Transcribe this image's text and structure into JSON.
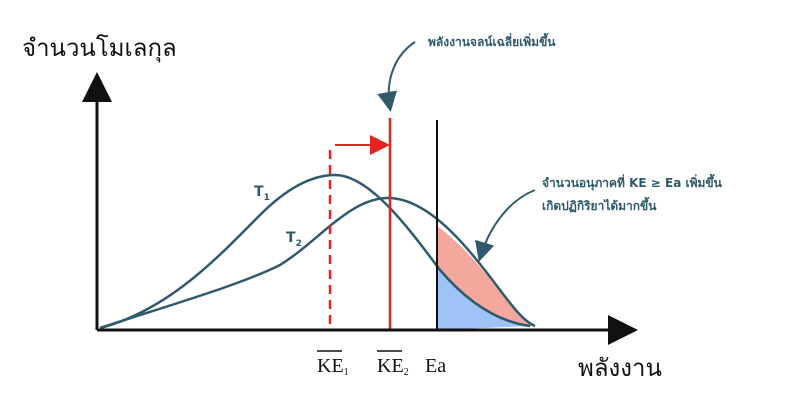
{
  "axes": {
    "y_label": "จำนวนโมเลกุล",
    "x_label": "พลังงาน"
  },
  "annotations": {
    "average_energy": "พลังงานจลน์เฉลี่ยเพิ่มขึ้น",
    "particles_line1": "จำนวนอนุภาคที่ KE ≥ Ea เพิ่มขึ้น",
    "particles_line2": "เกิดปฏิกิริยาได้มากขึ้น"
  },
  "curves": [
    {
      "label": "T",
      "sub": "1"
    },
    {
      "label": "T",
      "sub": "2"
    }
  ],
  "markers": [
    {
      "label": "KE",
      "sub": "1"
    },
    {
      "label": "KE",
      "sub": "2"
    },
    {
      "label": "Ea"
    }
  ]
}
